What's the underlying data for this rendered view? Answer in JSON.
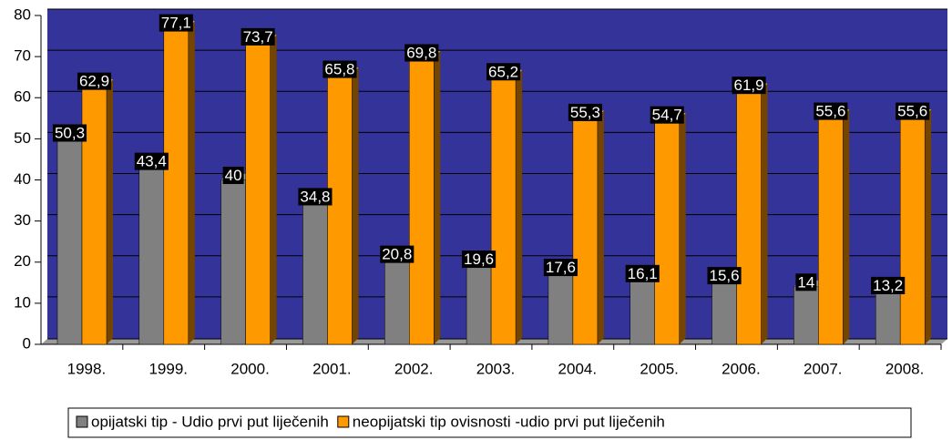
{
  "chart_data": {
    "type": "bar",
    "categories": [
      "1998.",
      "1999.",
      "2000.",
      "2001.",
      "2002.",
      "2003.",
      "2004.",
      "2005.",
      "2006.",
      "2007.",
      "2008."
    ],
    "series": [
      {
        "name": "opijatski tip - Udio prvi put liječenih",
        "color": "#808080",
        "values": [
          50.3,
          43.4,
          40,
          34.8,
          20.8,
          19.6,
          17.6,
          16.1,
          15.6,
          14,
          13.2
        ],
        "value_labels": [
          "50,3",
          "43,4",
          "40",
          "34,8",
          "20,8",
          "19,6",
          "17,6",
          "16,1",
          "15,6",
          "14",
          "13,2"
        ]
      },
      {
        "name": "neopijatski tip ovisnosti -udio prvi put liječenih",
        "color": "#ff9900",
        "values": [
          62.9,
          77.1,
          73.7,
          65.8,
          69.8,
          65.2,
          55.3,
          54.7,
          61.9,
          55.6,
          55.6
        ],
        "value_labels": [
          "62,9",
          "77,1",
          "73,7",
          "65,8",
          "69,8",
          "65,2",
          "55,3",
          "54,7",
          "61,9",
          "55,6",
          "55,6"
        ]
      }
    ],
    "ylim": [
      0,
      80
    ],
    "yticks": [
      0,
      10,
      20,
      30,
      40,
      50,
      60,
      70,
      80
    ],
    "grid": true,
    "legend": "bottom"
  }
}
